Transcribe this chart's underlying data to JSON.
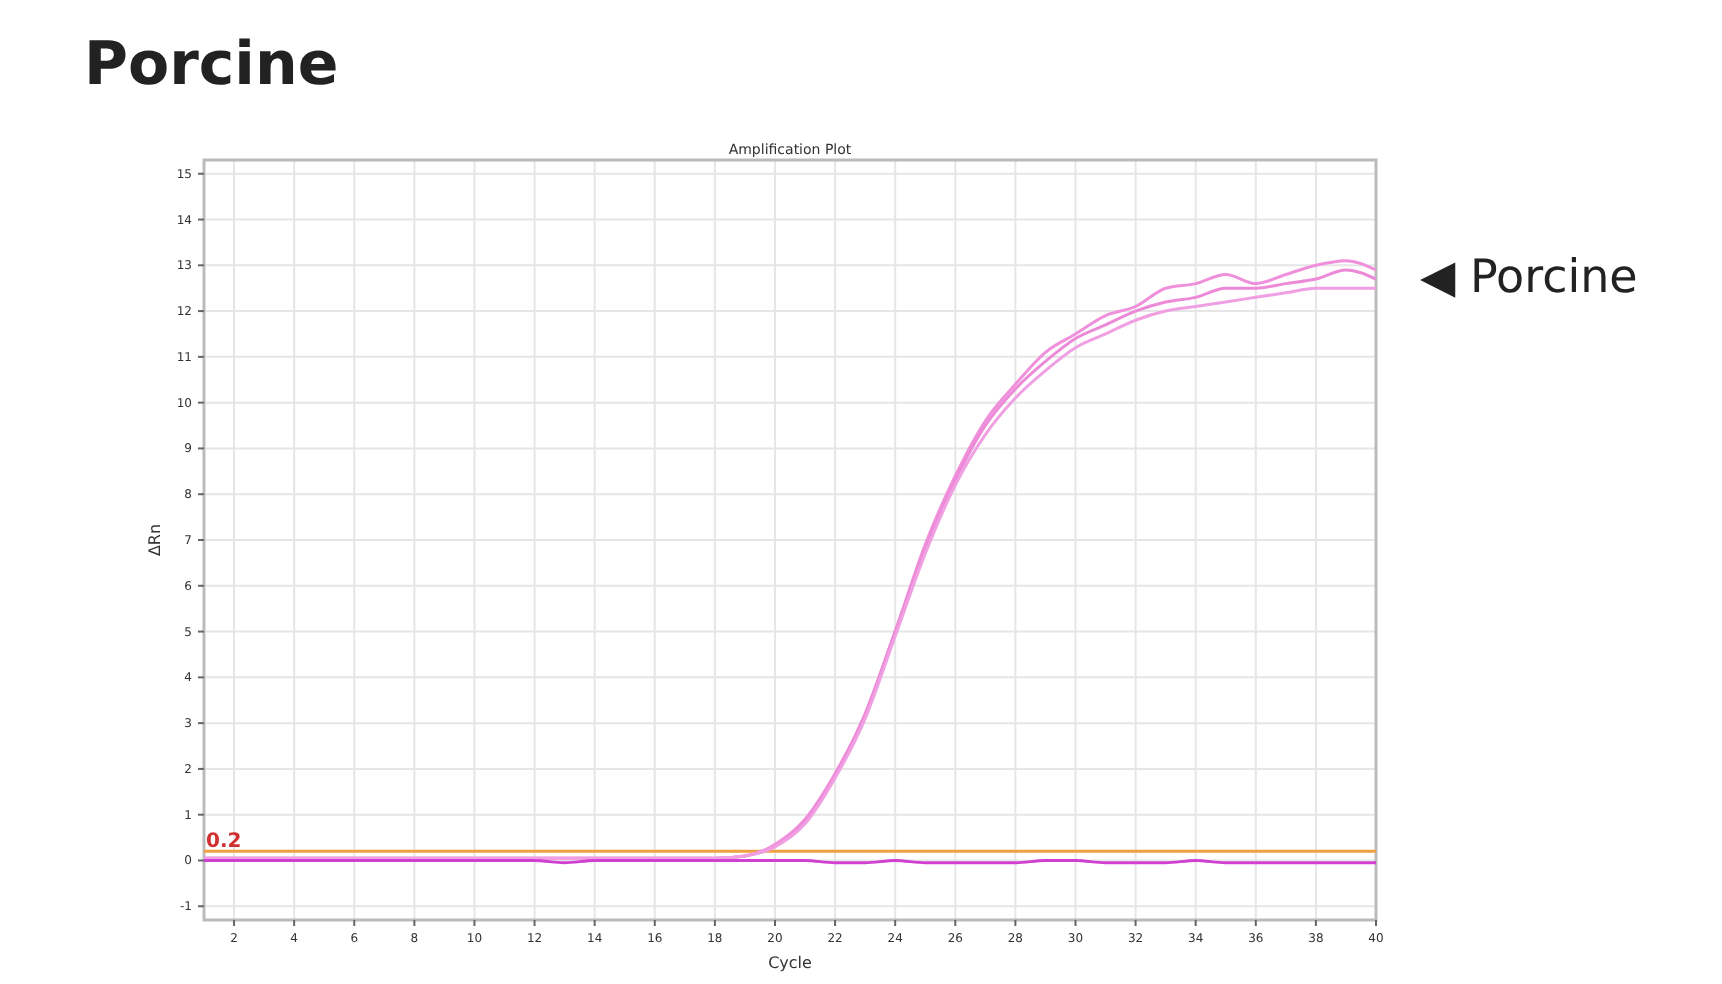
{
  "chart_data": {
    "type": "line",
    "title": "Porcine",
    "subtitle": "Amplification Plot",
    "xlabel": "Cycle",
    "ylabel": "ΔRn",
    "annotations": [
      "◀ Porcine"
    ],
    "x": [
      1,
      2,
      3,
      4,
      5,
      6,
      7,
      8,
      9,
      10,
      11,
      12,
      13,
      14,
      15,
      16,
      17,
      18,
      19,
      20,
      21,
      22,
      23,
      24,
      25,
      26,
      27,
      28,
      29,
      30,
      31,
      32,
      33,
      34,
      35,
      36,
      37,
      38,
      39,
      40
    ],
    "series": [
      {
        "color": "#f090dc",
        "values": [
          0.05,
          0.05,
          0.05,
          0.05,
          0.05,
          0.05,
          0.05,
          0.05,
          0.05,
          0.05,
          0.05,
          0.05,
          0.05,
          0.05,
          0.05,
          0.05,
          0.05,
          0.05,
          0.1,
          0.35,
          0.9,
          1.9,
          3.2,
          5.0,
          6.9,
          8.4,
          9.6,
          10.4,
          11.1,
          11.5,
          11.9,
          12.1,
          12.5,
          12.6,
          12.8,
          12.6,
          12.8,
          13.0,
          13.1,
          12.9
        ]
      },
      {
        "color": "#ec8ad8",
        "values": [
          0.05,
          0.05,
          0.05,
          0.05,
          0.05,
          0.05,
          0.05,
          0.05,
          0.05,
          0.05,
          0.05,
          0.05,
          0.05,
          0.05,
          0.05,
          0.05,
          0.05,
          0.05,
          0.1,
          0.3,
          0.85,
          1.85,
          3.2,
          5.0,
          6.8,
          8.3,
          9.5,
          10.3,
          10.9,
          11.4,
          11.7,
          12.0,
          12.2,
          12.3,
          12.5,
          12.5,
          12.6,
          12.7,
          12.9,
          12.7
        ]
      },
      {
        "color": "#f0a0e2",
        "values": [
          0.05,
          0.05,
          0.05,
          0.05,
          0.05,
          0.05,
          0.05,
          0.05,
          0.05,
          0.05,
          0.05,
          0.05,
          0.05,
          0.05,
          0.05,
          0.05,
          0.05,
          0.05,
          0.1,
          0.3,
          0.8,
          1.8,
          3.1,
          4.9,
          6.7,
          8.2,
          9.3,
          10.1,
          10.7,
          11.2,
          11.5,
          11.8,
          12.0,
          12.1,
          12.2,
          12.3,
          12.4,
          12.5,
          12.5,
          12.5
        ]
      },
      {
        "color": "#d040d0",
        "values": [
          0.0,
          0.0,
          0.0,
          0.0,
          0.0,
          0.0,
          0.0,
          0.0,
          0.0,
          0.0,
          0.0,
          0.0,
          -0.05,
          0.0,
          0.0,
          0.0,
          0.0,
          0.0,
          0.0,
          0.0,
          0.0,
          -0.05,
          -0.05,
          0.0,
          -0.05,
          -0.05,
          -0.05,
          -0.05,
          0.0,
          0.0,
          -0.05,
          -0.05,
          -0.05,
          0.0,
          -0.05,
          -0.05,
          -0.05,
          -0.05,
          -0.05,
          -0.05
        ]
      }
    ],
    "xlim": [
      1,
      40
    ],
    "ylim": [
      -1.3,
      15.3
    ],
    "xticks": [
      2,
      4,
      6,
      8,
      10,
      12,
      14,
      16,
      18,
      20,
      22,
      24,
      26,
      28,
      30,
      32,
      34,
      36,
      38,
      40
    ],
    "yticks": [
      -1,
      0,
      1,
      2,
      3,
      4,
      5,
      6,
      7,
      8,
      9,
      10,
      11,
      12,
      13,
      14,
      15
    ],
    "ref_lines": [
      {
        "axis": "y",
        "value": 0.2,
        "label": "0.2",
        "color": "#f0a040"
      }
    ],
    "grid": true
  }
}
